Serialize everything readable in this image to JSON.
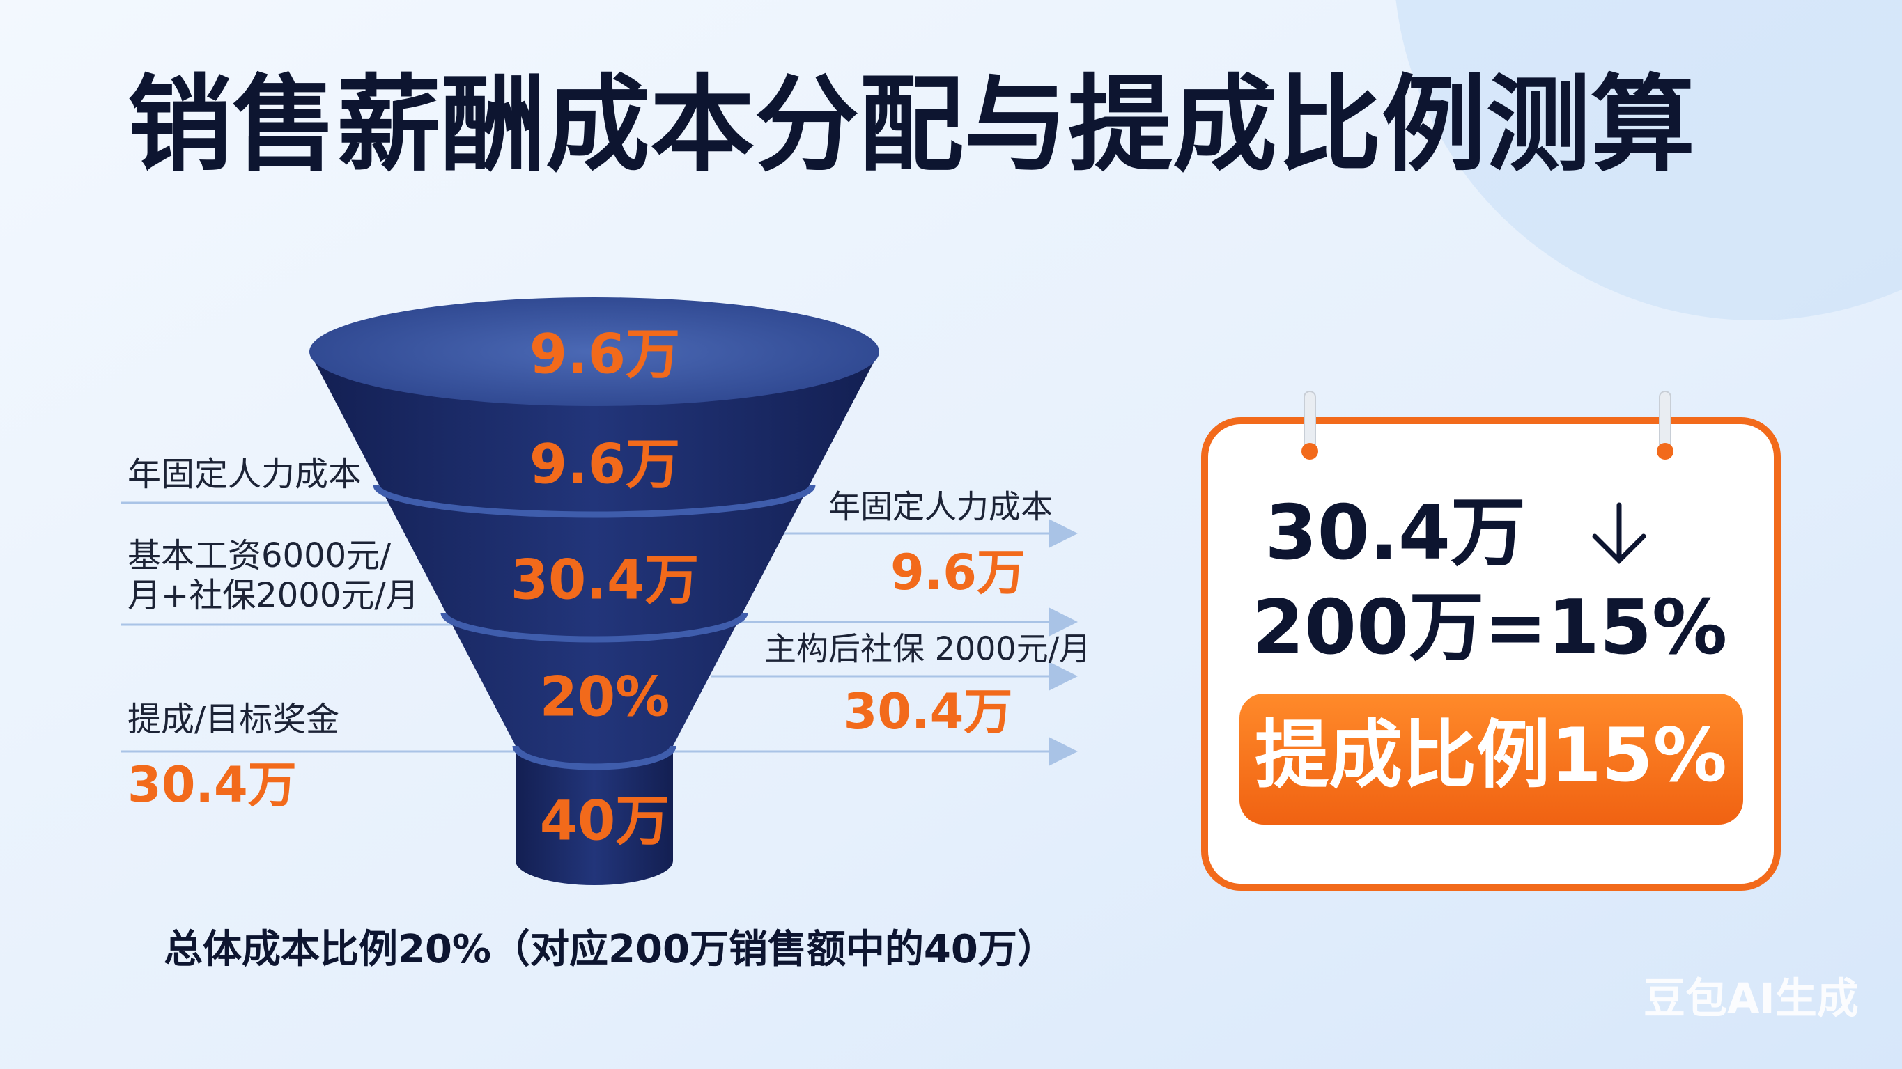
{
  "title": "销售薪酬成本分配与提成比例测算",
  "funnel": {
    "layers": [
      "9.6万",
      "9.6万",
      "30.4万",
      "20%",
      "40万"
    ]
  },
  "left_labels": [
    {
      "lines": [
        "年固定人力成本"
      ]
    },
    {
      "lines": [
        "基本工资6000元/",
        "月+社保2000元/月"
      ]
    },
    {
      "lines": [
        "提成/目标奖金"
      ],
      "value": "30.4万"
    }
  ],
  "right_labels": [
    {
      "label": "年固定人力成本",
      "value": "9.6万"
    },
    {
      "label": "主构后社保 2000元/月",
      "value": "30.4万"
    }
  ],
  "card": {
    "line1": "30.4万",
    "line2": "200万=15%",
    "badge": "提成比例15%"
  },
  "footnote": "总体成本比例20%（对应200万销售额中的40万）",
  "watermark": "豆包AI生成"
}
